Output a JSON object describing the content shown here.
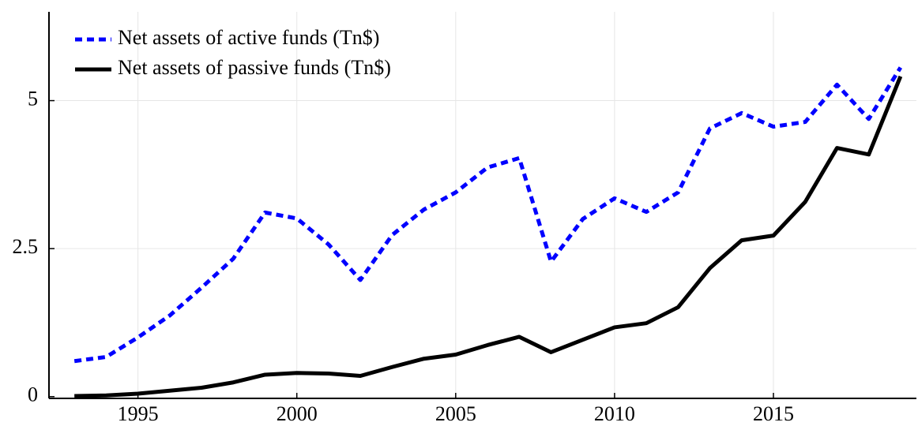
{
  "chart_data": {
    "type": "line",
    "x": [
      1993,
      1994,
      1995,
      1996,
      1997,
      1998,
      1999,
      2000,
      2001,
      2002,
      2003,
      2004,
      2005,
      2006,
      2007,
      2008,
      2009,
      2010,
      2011,
      2012,
      2013,
      2014,
      2015,
      2016,
      2017,
      2018,
      2019
    ],
    "series": [
      {
        "name": "Net assets of active funds (Tn$)",
        "color": "#0000ff",
        "dashed": true,
        "values": [
          0.6,
          0.67,
          1.0,
          1.37,
          1.84,
          2.33,
          3.11,
          3.01,
          2.57,
          1.97,
          2.73,
          3.16,
          3.45,
          3.87,
          4.03,
          2.28,
          3.0,
          3.35,
          3.12,
          3.45,
          4.53,
          4.79,
          4.56,
          4.64,
          5.27,
          4.69,
          5.56
        ]
      },
      {
        "name": "Net assets of passive funds (Tn$)",
        "color": "#000000",
        "dashed": false,
        "values": [
          0.01,
          0.02,
          0.05,
          0.1,
          0.15,
          0.24,
          0.37,
          0.4,
          0.39,
          0.35,
          0.5,
          0.64,
          0.71,
          0.87,
          1.01,
          0.75,
          0.96,
          1.17,
          1.24,
          1.51,
          2.17,
          2.64,
          2.72,
          3.29,
          4.2,
          4.09,
          5.41
        ]
      }
    ],
    "xlim": [
      1992.2,
      2019.5
    ],
    "xticks": [
      1995,
      2000,
      2005,
      2010,
      2015
    ],
    "ylim": [
      -0.03,
      6.5
    ],
    "yticks": [
      0,
      2.5,
      5
    ],
    "grid": true,
    "legend": "top-left"
  }
}
